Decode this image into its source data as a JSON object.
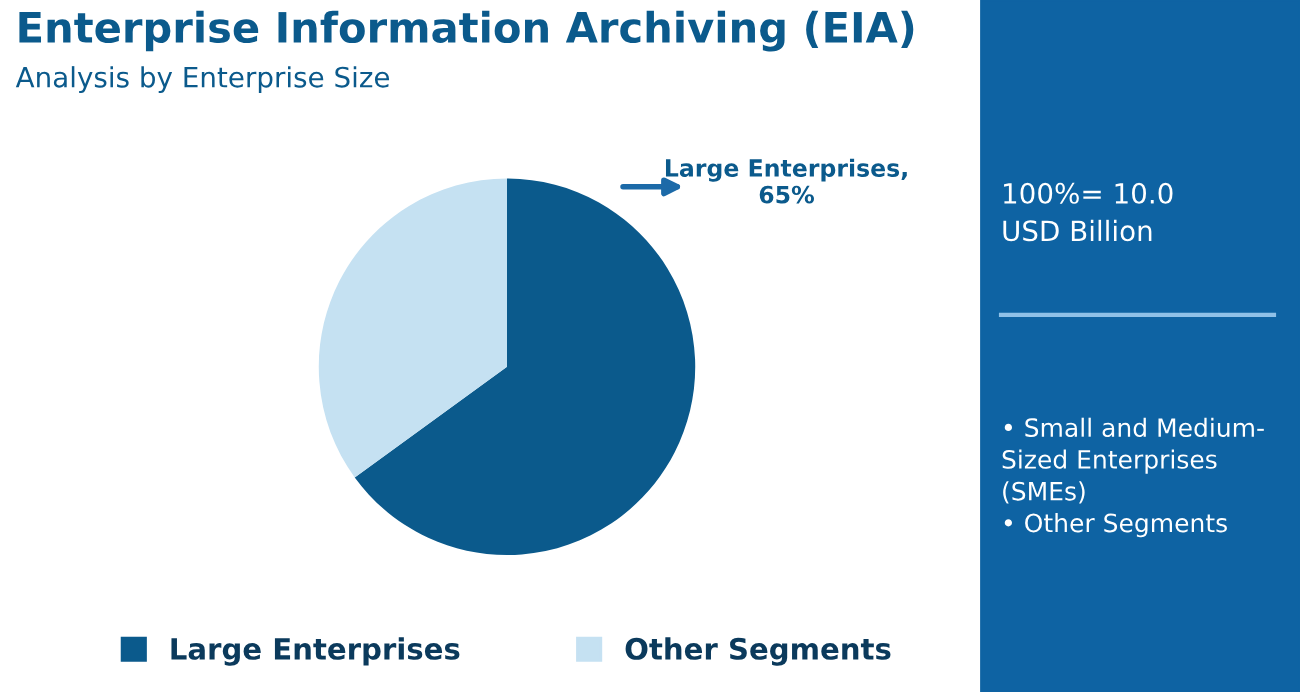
{
  "chart_data": {
    "type": "pie",
    "title": "Enterprise Information Archiving (EIA)",
    "subtitle": "Analysis by Enterprise Size",
    "categories": [
      "Large Enterprises",
      "Other Segments"
    ],
    "values": [
      65,
      35
    ],
    "colors": [
      "#0b5a8c",
      "#c5e1f2"
    ],
    "legend": "bottom",
    "annotations": [
      "Large Enterprises,\n65%",
      "100%= 10.0\nUSD Billion",
      "• Small and Medium-\nSized Enterprises\n(SMEs)\n• Other Segments"
    ]
  }
}
